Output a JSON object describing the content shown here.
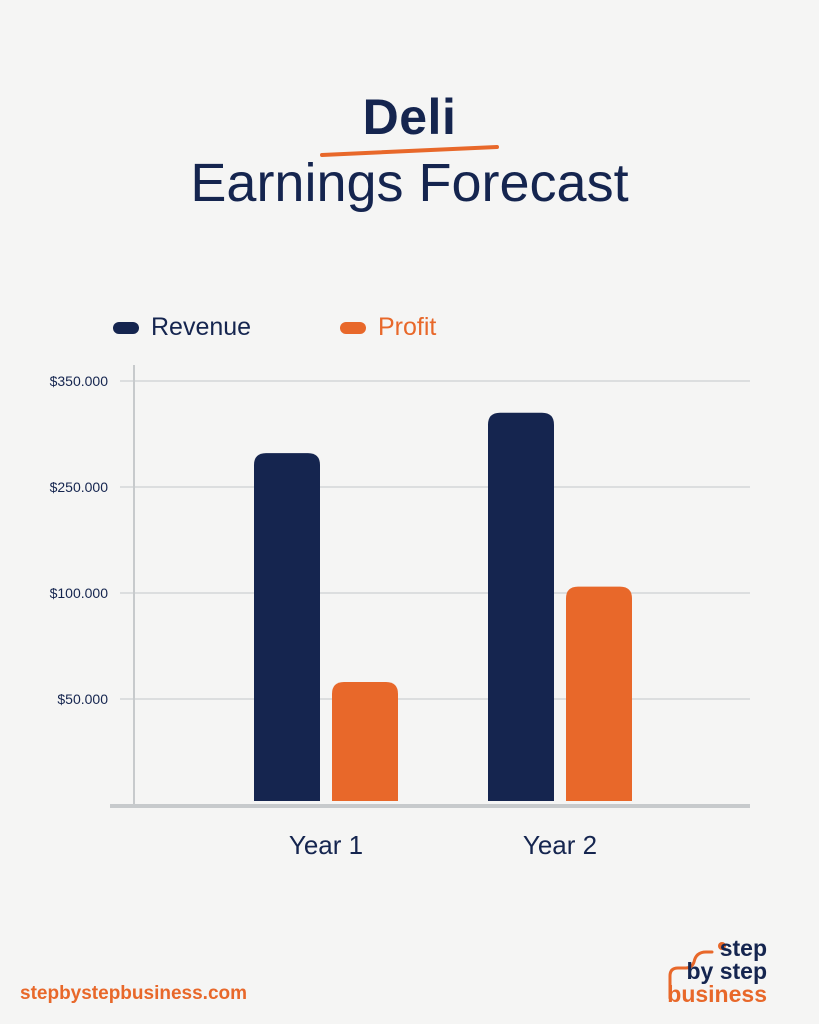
{
  "title": "Deli",
  "subtitle": "Earnings Forecast",
  "colors": {
    "revenue": "#15254f",
    "profit": "#e8682a",
    "text": "#15254f",
    "grid": "#d3d6d8",
    "axis": "#c7cacc",
    "background": "#f5f5f4"
  },
  "chart_data": {
    "type": "bar",
    "categories": [
      "Year 1",
      "Year 2"
    ],
    "series": [
      {
        "name": "Revenue",
        "values": [
          282000,
          320000
        ]
      },
      {
        "name": "Profit",
        "values": [
          58000,
          109000
        ]
      }
    ],
    "ytick_labels": [
      "$350.000",
      "$250.000",
      "$100.000",
      "$50.000"
    ],
    "ylabel": "",
    "xlabel": "",
    "grid": true,
    "legend": "top-left"
  },
  "footer": {
    "url": "stepbystepbusiness.com"
  },
  "logo": {
    "line1": "step",
    "line2": "by step",
    "line3": "business"
  }
}
